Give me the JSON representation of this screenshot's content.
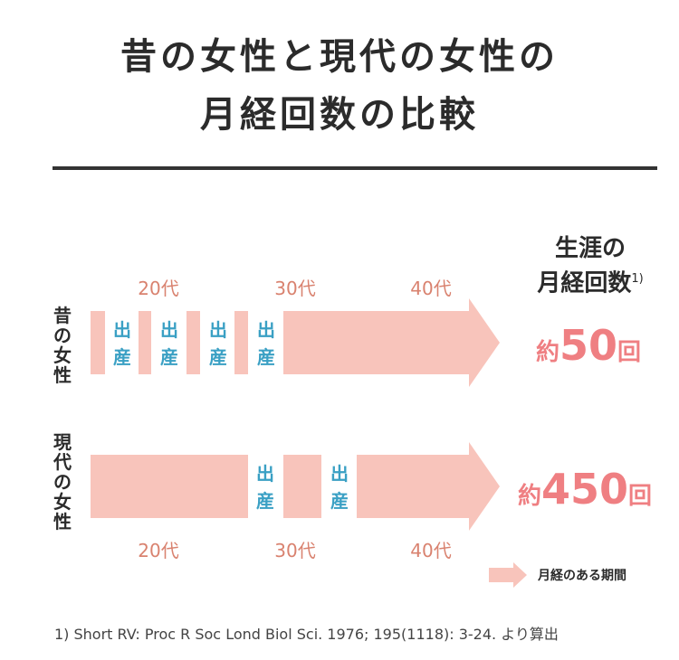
{
  "title": {
    "line1": "昔の女性と現代の女性の",
    "line2": "月経回数の比較"
  },
  "side_header": {
    "line1": "生涯の",
    "line2": "月経回数",
    "note": "1)"
  },
  "rows": [
    {
      "label": [
        "昔",
        "の",
        "女",
        "性"
      ],
      "count_prefix": "約",
      "count_value": "50",
      "count_suffix": "回",
      "births": 4
    },
    {
      "label": [
        "現",
        "代",
        "の",
        "女",
        "性"
      ],
      "count_prefix": "約",
      "count_value": "450",
      "count_suffix": "回",
      "births": 2
    }
  ],
  "decades": [
    "20代",
    "30代",
    "40代"
  ],
  "birth_label": [
    "出",
    "産"
  ],
  "legend": {
    "label": "月経のある期間"
  },
  "footnote": "1) Short RV: Proc R Soc Lond Biol Sci. 1976; 195(1118): 3-24. より算出",
  "colors": {
    "bar": "#f8c4bb",
    "decade": "#d9826f",
    "count": "#ef7f82",
    "birth": "#3aa0c4",
    "text": "#2b2b2b"
  }
}
